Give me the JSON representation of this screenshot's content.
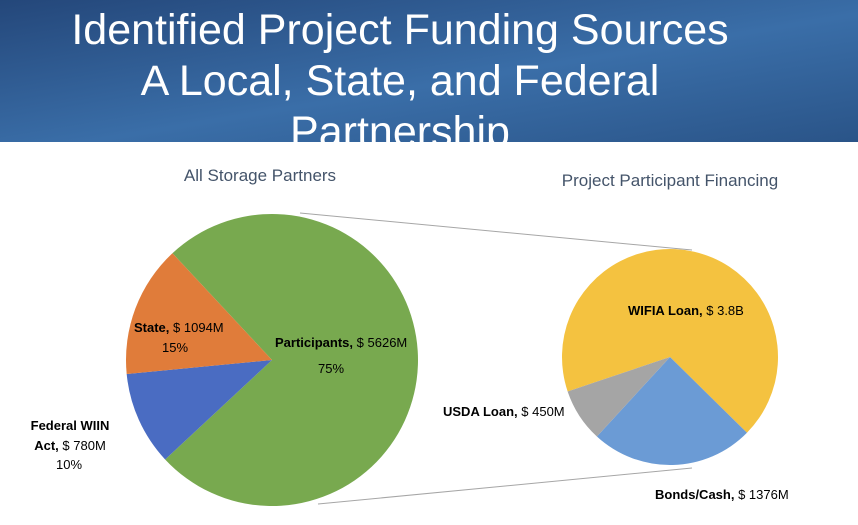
{
  "slide": {
    "title_lines": [
      "Identified Project Funding Sources",
      "A Local, State, and Federal",
      "Partnership"
    ]
  },
  "chart_data": [
    {
      "type": "pie",
      "title": "All Storage Partners",
      "categories": [
        "Participants,",
        "Federal WIIN Act,",
        "State,"
      ],
      "values": [
        5626,
        780,
        1094
      ],
      "value_labels": [
        "$ 5626M",
        "$ 780M",
        "$ 1094M"
      ],
      "percent_labels": [
        "75%",
        "10%",
        "15%"
      ],
      "colors": [
        "#78a94f",
        "#4a6cc2",
        "#e07c3a"
      ]
    },
    {
      "type": "pie",
      "title": "Project Participant Financing",
      "categories": [
        "WIFIA Loan,",
        "Bonds/Cash,",
        "USDA Loan,"
      ],
      "values": [
        3800,
        1376,
        450
      ],
      "value_labels": [
        "$ 3.8B",
        "$ 1376M",
        "$ 450M"
      ],
      "colors": [
        "#f4c240",
        "#6b9bd5",
        "#a5a5a5"
      ]
    }
  ]
}
